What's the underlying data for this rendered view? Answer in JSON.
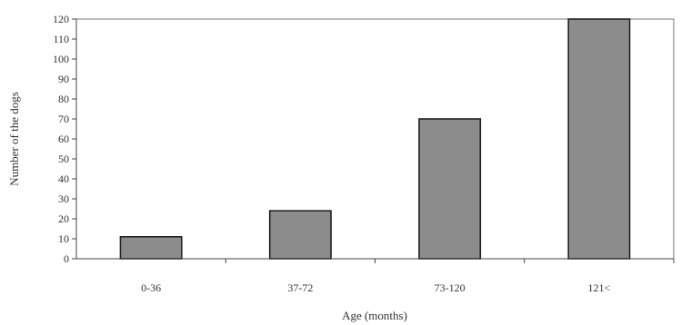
{
  "chart_data": {
    "type": "bar",
    "categories": [
      "0-36",
      "37-72",
      "73-120",
      "121<"
    ],
    "values": [
      11,
      24,
      70,
      120
    ],
    "xlabel": "Age (months)",
    "ylabel": "Number of the dogs",
    "ylim": [
      0,
      120
    ],
    "yticks": [
      0,
      10,
      20,
      30,
      40,
      50,
      60,
      70,
      80,
      90,
      100,
      110,
      120
    ],
    "grid": false,
    "colors": {
      "bar_fill": "#8c8c8c",
      "bar_stroke": "#222222"
    }
  }
}
